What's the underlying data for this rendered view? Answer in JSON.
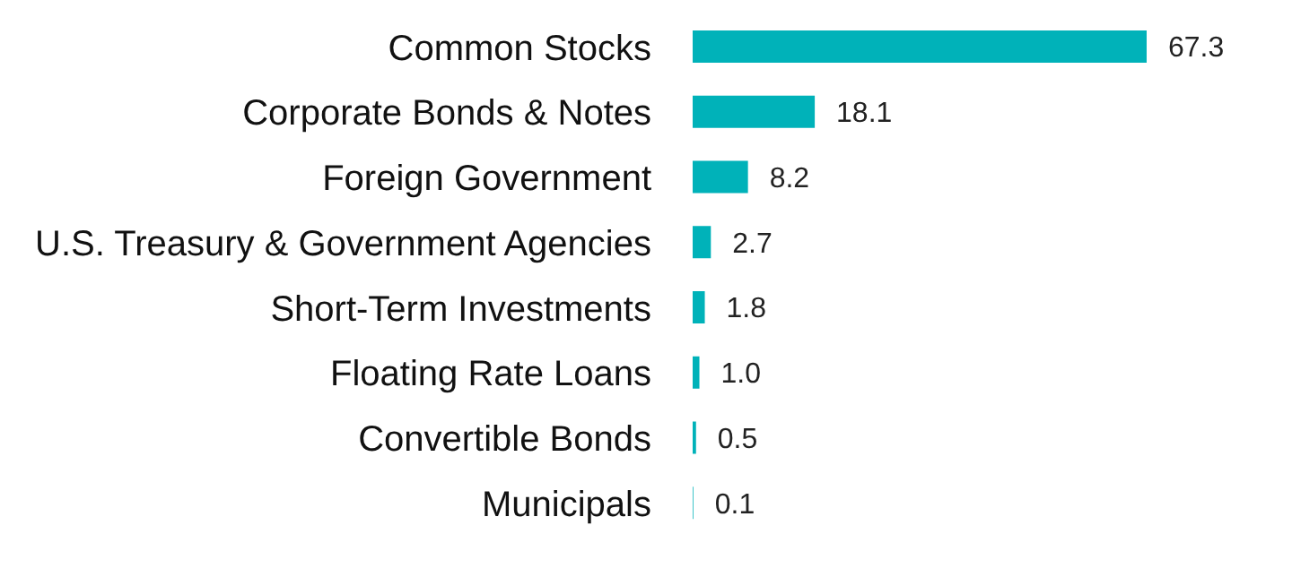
{
  "chart_data": {
    "type": "bar",
    "orientation": "horizontal",
    "categories": [
      "Common Stocks",
      "Corporate Bonds & Notes",
      "Foreign Government",
      "U.S. Treasury & Government Agencies",
      "Short-Term Investments",
      "Floating Rate Loans",
      "Convertible Bonds",
      "Municipals"
    ],
    "values": [
      67.3,
      18.1,
      8.2,
      2.7,
      1.8,
      1.0,
      0.5,
      0.1
    ],
    "value_labels": [
      "67.3",
      "18.1",
      "8.2",
      "2.7",
      "1.8",
      "1.0",
      "0.5",
      "0.1"
    ],
    "color": "#00b2b9"
  }
}
